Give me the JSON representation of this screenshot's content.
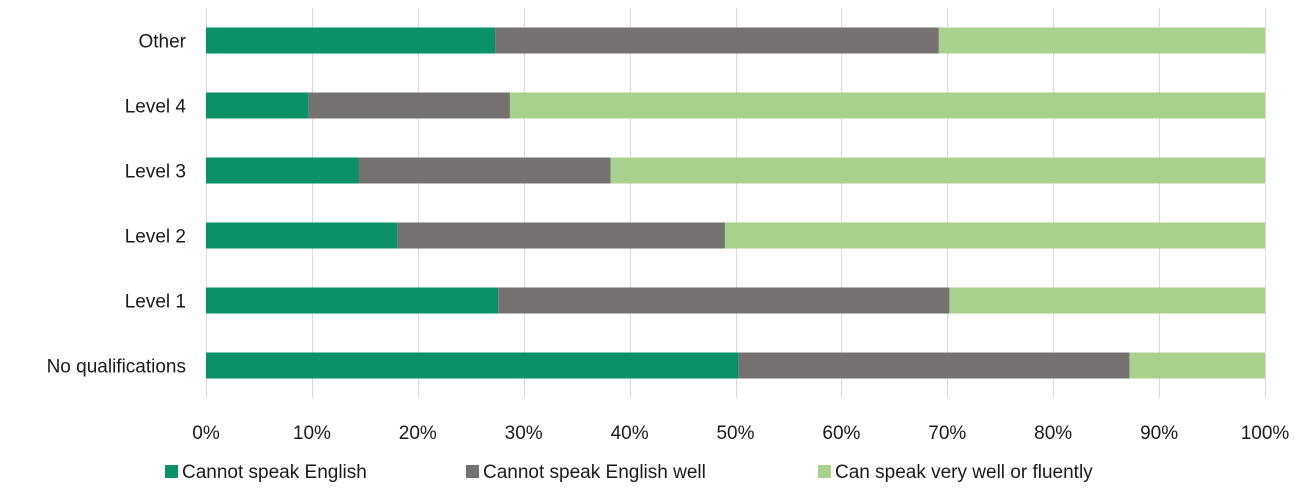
{
  "chart_data": {
    "type": "bar",
    "orientation": "horizontal",
    "stacked": true,
    "categories": [
      "Other",
      "Level 4",
      "Level 3",
      "Level 2",
      "Level 1",
      "No qualifications"
    ],
    "series": [
      {
        "name": "Cannot speak English",
        "color": "#0a9167",
        "values": [
          27.3,
          9.7,
          14.4,
          18.1,
          27.6,
          50.3
        ]
      },
      {
        "name": "Cannot speak English well",
        "color": "#767171",
        "values": [
          41.9,
          19.0,
          23.8,
          30.9,
          42.6,
          36.9
        ]
      },
      {
        "name": "Can speak very well or fluently",
        "color": "#a9d18e",
        "values": [
          30.8,
          71.3,
          61.8,
          51.0,
          29.8,
          12.8
        ]
      }
    ],
    "x_ticks": [
      "0%",
      "10%",
      "20%",
      "30%",
      "40%",
      "50%",
      "60%",
      "70%",
      "80%",
      "90%",
      "100%"
    ],
    "xlim": [
      0,
      100
    ],
    "grid": "vertical",
    "legend_position": "bottom"
  }
}
